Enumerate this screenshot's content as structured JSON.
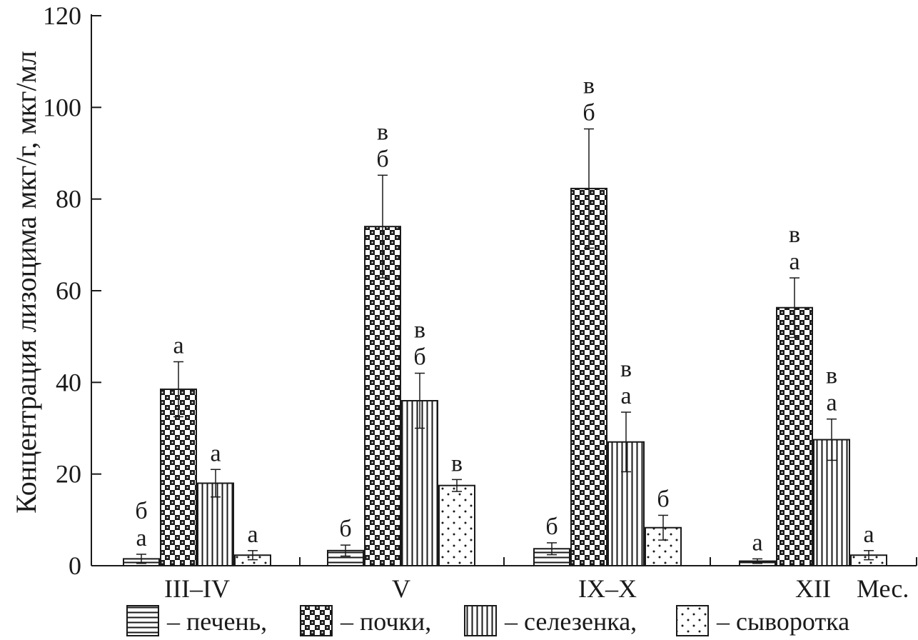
{
  "chart_data": {
    "type": "bar",
    "title": "",
    "ylabel": "Концентрация лизоцима мкг/г, мкг/мл",
    "xlabel": "Мес.",
    "ylim": [
      0,
      120
    ],
    "yticks": [
      0,
      20,
      40,
      60,
      80,
      100,
      120
    ],
    "categories": [
      "III–IV",
      "V",
      "IX–X",
      "XII"
    ],
    "series": [
      {
        "name": "печень",
        "pattern": "horizontal-lines",
        "values": [
          1.5,
          3.3,
          3.7,
          1.0
        ],
        "errors": [
          1.0,
          1.2,
          1.3,
          0.5
        ],
        "letters": [
          [
            "б",
            "а"
          ],
          [
            "б"
          ],
          [
            "б"
          ],
          [
            "а"
          ]
        ]
      },
      {
        "name": "почки",
        "pattern": "checkerboard",
        "values": [
          38.5,
          74.0,
          82.3,
          56.3
        ],
        "errors": [
          6.0,
          11.2,
          13.0,
          6.5
        ],
        "letters": [
          [
            "а"
          ],
          [
            "в",
            "б"
          ],
          [
            "в",
            "б"
          ],
          [
            "в",
            "а"
          ]
        ]
      },
      {
        "name": "селезенка",
        "pattern": "vertical-lines",
        "values": [
          18.0,
          36.0,
          27.0,
          27.5
        ],
        "errors": [
          3.0,
          6.0,
          6.5,
          4.5
        ],
        "letters": [
          [
            "а"
          ],
          [
            "в",
            "б"
          ],
          [
            "в",
            "а"
          ],
          [
            "в",
            "а"
          ]
        ]
      },
      {
        "name": "сыворотка",
        "pattern": "dots",
        "values": [
          2.3,
          17.5,
          8.3,
          2.3
        ],
        "errors": [
          1.0,
          1.3,
          2.7,
          1.0
        ],
        "letters": [
          [
            "а"
          ],
          [
            "в"
          ],
          [
            "б"
          ],
          [
            "а"
          ]
        ]
      }
    ],
    "legend": {
      "position": "bottom",
      "separator": " – ",
      "entries": [
        "печень,",
        "почки,",
        "селезенка,",
        "сыворотка"
      ]
    },
    "colors": {
      "ink": "#1a1a1a",
      "background": "#ffffff"
    }
  }
}
